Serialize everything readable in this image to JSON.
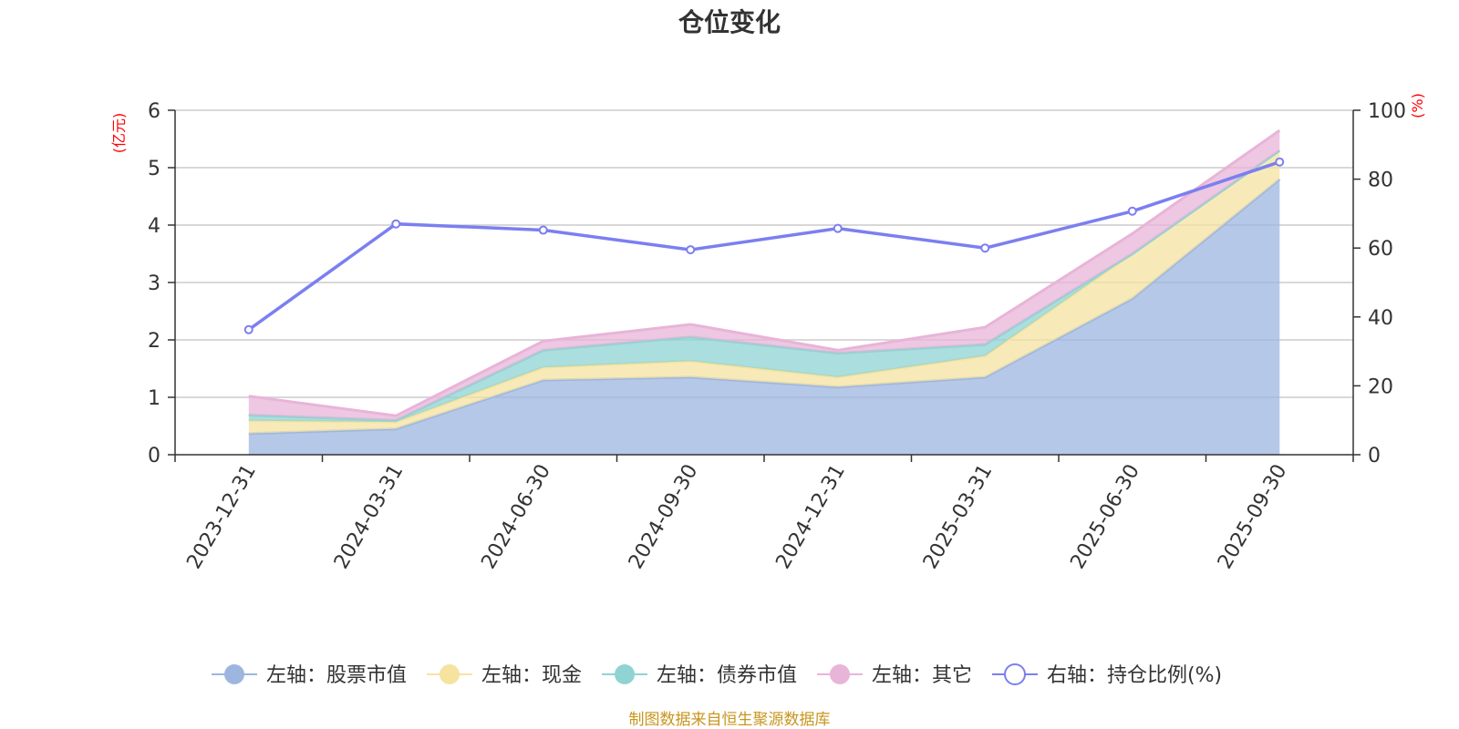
{
  "colors": {
    "stock": "#9db6e0",
    "cash": "#f6e3a0",
    "bond": "#8fd3d3",
    "other": "#e8b4d8",
    "ratio": "#7b7ff0",
    "grid": "#cccccc",
    "axis": "#333333",
    "unit": "#ff0000",
    "source": "#c8961e"
  },
  "chart_data": {
    "type": "area",
    "title": "仓位变化",
    "y_left_unit": "(亿元)",
    "y_right_unit": "(%)",
    "ylim_left": [
      0,
      6
    ],
    "ylim_right": [
      0,
      100
    ],
    "y_left_ticks": [
      "0",
      "1",
      "2",
      "3",
      "4",
      "5",
      "6"
    ],
    "y_right_ticks": [
      "0",
      "20",
      "40",
      "60",
      "80",
      "100"
    ],
    "categories": [
      "2023-12-31",
      "2024-03-31",
      "2024-06-30",
      "2024-09-30",
      "2024-12-31",
      "2025-03-31",
      "2025-06-30",
      "2025-09-30"
    ],
    "stacked_series": [
      {
        "key": "stock",
        "name": "左轴：股票市值",
        "values": [
          0.37,
          0.45,
          1.3,
          1.35,
          1.18,
          1.35,
          2.72,
          4.8
        ]
      },
      {
        "key": "cash",
        "name": "左轴：现金",
        "values": [
          0.22,
          0.12,
          0.22,
          0.28,
          0.17,
          0.37,
          0.78,
          0.5
        ]
      },
      {
        "key": "bond",
        "name": "左轴：债券市值",
        "values": [
          0.1,
          0.03,
          0.3,
          0.42,
          0.42,
          0.2,
          0.0,
          0.0
        ]
      },
      {
        "key": "other",
        "name": "左轴：其它",
        "values": [
          0.33,
          0.08,
          0.16,
          0.22,
          0.05,
          0.3,
          0.35,
          0.35
        ]
      }
    ],
    "line_series": {
      "key": "ratio",
      "name": "右轴：持仓比例(%)",
      "axis": "right",
      "values": [
        36.3,
        67.0,
        65.2,
        59.5,
        65.7,
        60.0,
        70.7,
        85.0
      ]
    }
  },
  "source_text": "制图数据来自恒生聚源数据库"
}
